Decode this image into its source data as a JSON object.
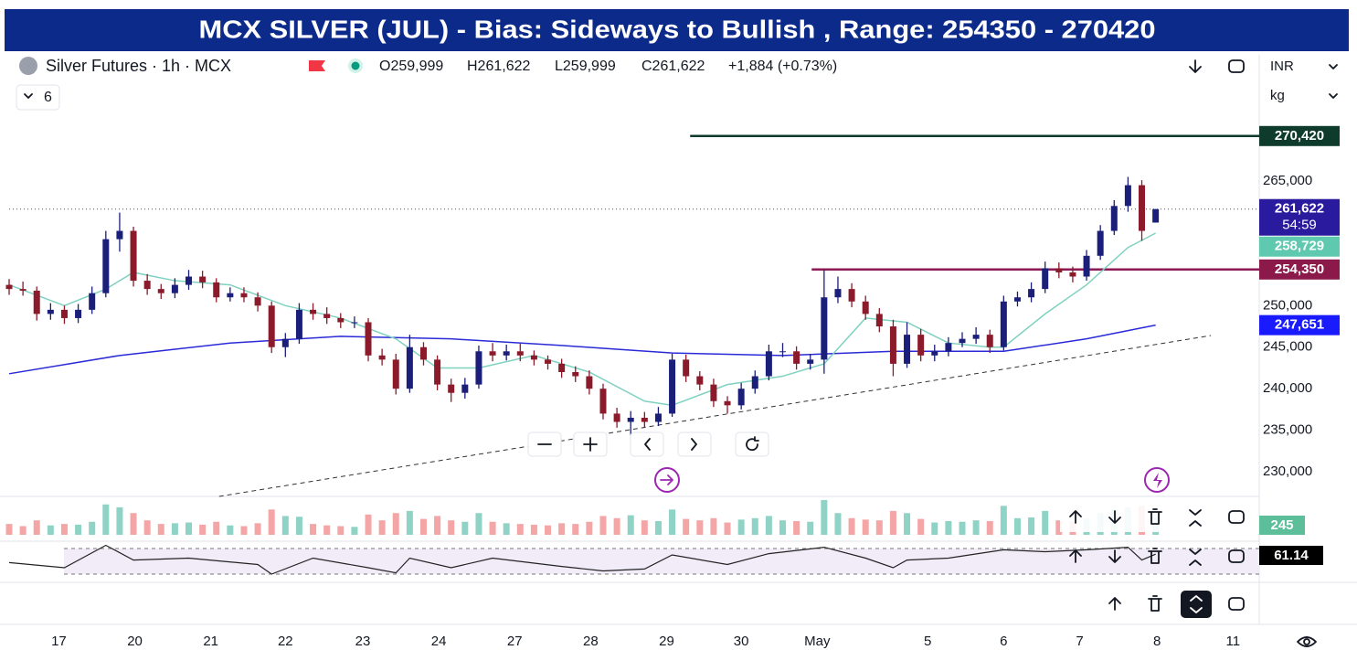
{
  "chart_data": {
    "type": "candlestick",
    "title": "MCX SILVER (JUL) - Bias: Sideways to Bullish , Range: 254350 - 270420",
    "legend": {
      "symbol": "Silver Futures · 1h · MCX",
      "open": "O259,999",
      "high": "H261,622",
      "low": "L259,999",
      "close": "C261,622",
      "change": "+1,884 (+0.73%)",
      "indicators": "6"
    },
    "currency": "INR",
    "unit": "kg",
    "up_color": "#1b1f7a",
    "down_color": "#8b1a2b",
    "volume_up_color": "#8fd3c6",
    "volume_down_color": "#f4a6a6",
    "xlim": [
      0,
      90.5
    ],
    "ylim": [
      227360,
      274690
    ],
    "yticks": [
      {
        "value": 230000,
        "label": "230,000"
      },
      {
        "value": 235000,
        "label": "235,000"
      },
      {
        "value": 240000,
        "label": "240,000"
      },
      {
        "value": 245000,
        "label": "245,000"
      },
      {
        "value": 250000,
        "label": "250,000"
      },
      {
        "value": 265000,
        "label": "265,000"
      }
    ],
    "xticks": [
      {
        "value": 3.6,
        "label": "17"
      },
      {
        "value": 9.1,
        "label": "20"
      },
      {
        "value": 14.6,
        "label": "21"
      },
      {
        "value": 20.0,
        "label": "22"
      },
      {
        "value": 25.6,
        "label": "23"
      },
      {
        "value": 31.1,
        "label": "24"
      },
      {
        "value": 36.6,
        "label": "27"
      },
      {
        "value": 42.1,
        "label": "28"
      },
      {
        "value": 47.6,
        "label": "29"
      },
      {
        "value": 53.0,
        "label": "30"
      },
      {
        "value": 58.5,
        "label": "May"
      },
      {
        "value": 66.5,
        "label": "5"
      },
      {
        "value": 72.0,
        "label": "6"
      },
      {
        "value": 77.5,
        "label": "7"
      },
      {
        "value": 83.1,
        "label": "8"
      },
      {
        "value": 88.6,
        "label": "11"
      }
    ],
    "grid": false,
    "ohlc": [
      [
        252500,
        253200,
        251300,
        252000
      ],
      [
        252000,
        252900,
        251200,
        251800
      ],
      [
        251800,
        252300,
        248200,
        249000
      ],
      [
        249000,
        250300,
        248300,
        249500
      ],
      [
        249500,
        250000,
        247800,
        248500
      ],
      [
        248500,
        250200,
        247900,
        249500
      ],
      [
        249500,
        252300,
        249000,
        251500
      ],
      [
        251500,
        259000,
        251000,
        258000
      ],
      [
        258000,
        261200,
        256500,
        259000
      ],
      [
        259000,
        259500,
        252300,
        253000
      ],
      [
        253000,
        253800,
        251300,
        252000
      ],
      [
        252000,
        252600,
        250800,
        251500
      ],
      [
        251500,
        253300,
        250900,
        252500
      ],
      [
        252500,
        254300,
        251900,
        253500
      ],
      [
        253500,
        254200,
        252100,
        252800
      ],
      [
        252800,
        253300,
        250400,
        251000
      ],
      [
        251000,
        252200,
        250500,
        251500
      ],
      [
        251500,
        252200,
        250400,
        251000
      ],
      [
        251000,
        251600,
        249300,
        250000
      ],
      [
        250000,
        250500,
        244300,
        245000
      ],
      [
        245000,
        246700,
        243800,
        246000
      ],
      [
        246000,
        250300,
        245400,
        249500
      ],
      [
        249500,
        250300,
        248300,
        249000
      ],
      [
        249000,
        249800,
        247800,
        248500
      ],
      [
        248500,
        249100,
        247300,
        248000
      ],
      [
        248000,
        248700,
        247300,
        248000
      ],
      [
        248000,
        248500,
        243300,
        244000
      ],
      [
        244000,
        244800,
        242800,
        243500
      ],
      [
        243500,
        244200,
        239300,
        240000
      ],
      [
        240000,
        246500,
        239500,
        245000
      ],
      [
        245000,
        245600,
        242800,
        243500
      ],
      [
        243500,
        244000,
        239800,
        240500
      ],
      [
        240500,
        241200,
        238400,
        239500
      ],
      [
        239500,
        241300,
        238800,
        240500
      ],
      [
        240500,
        245200,
        240000,
        244500
      ],
      [
        244500,
        245500,
        243300,
        244000
      ],
      [
        244000,
        245300,
        243400,
        244500
      ],
      [
        244500,
        245400,
        243300,
        244000
      ],
      [
        244000,
        244600,
        242800,
        243500
      ],
      [
        243500,
        244000,
        242300,
        243000
      ],
      [
        243000,
        243600,
        241300,
        242000
      ],
      [
        242000,
        242700,
        240800,
        241500
      ],
      [
        241500,
        242200,
        239300,
        240000
      ],
      [
        240000,
        240600,
        236300,
        237000
      ],
      [
        237000,
        237700,
        235300,
        236000
      ],
      [
        236000,
        237300,
        234300,
        236500
      ],
      [
        236500,
        237200,
        235300,
        236000
      ],
      [
        236000,
        237800,
        235500,
        237000
      ],
      [
        237000,
        244200,
        236600,
        243500
      ],
      [
        243500,
        244100,
        240800,
        241500
      ],
      [
        241500,
        242100,
        239800,
        240500
      ],
      [
        240500,
        241200,
        237800,
        238500
      ],
      [
        238500,
        239100,
        237000,
        238000
      ],
      [
        238000,
        240700,
        237500,
        240000
      ],
      [
        240000,
        242200,
        239400,
        241500
      ],
      [
        241500,
        245300,
        241000,
        244500
      ],
      [
        244500,
        245500,
        243800,
        244500
      ],
      [
        244500,
        245100,
        242300,
        243000
      ],
      [
        243000,
        244200,
        242300,
        243500
      ],
      [
        243500,
        254300,
        241800,
        251000
      ],
      [
        251000,
        253500,
        250300,
        252000
      ],
      [
        252000,
        252700,
        249800,
        250500
      ],
      [
        250500,
        251200,
        248300,
        249000
      ],
      [
        249000,
        249700,
        246800,
        247500
      ],
      [
        247500,
        248300,
        241500,
        243000
      ],
      [
        243000,
        248000,
        242500,
        246500
      ],
      [
        246500,
        247200,
        243300,
        244000
      ],
      [
        244000,
        245300,
        243300,
        244500
      ],
      [
        244500,
        246200,
        243900,
        245500
      ],
      [
        245500,
        246800,
        245000,
        246000
      ],
      [
        246000,
        247400,
        245400,
        246500
      ],
      [
        246500,
        247100,
        244300,
        245000
      ],
      [
        245000,
        251200,
        244600,
        250500
      ],
      [
        250500,
        251700,
        249900,
        251000
      ],
      [
        251000,
        252800,
        250400,
        252000
      ],
      [
        252000,
        255300,
        251500,
        254500
      ],
      [
        254500,
        255200,
        253300,
        254000
      ],
      [
        254000,
        254700,
        252800,
        253500
      ],
      [
        253500,
        256700,
        253000,
        256000
      ],
      [
        256000,
        259700,
        255500,
        259000
      ],
      [
        259000,
        262700,
        258500,
        262000
      ],
      [
        262000,
        265500,
        261300,
        264500
      ],
      [
        264500,
        265100,
        257800,
        259000
      ],
      [
        259999,
        261622,
        259999,
        261622
      ]
    ],
    "ma_fast": {
      "color": "#7fd1c0",
      "x": [
        0,
        4,
        7,
        9,
        12,
        16,
        20,
        24,
        28,
        31,
        34,
        38,
        42,
        46,
        48,
        52,
        56,
        59,
        62,
        65,
        68,
        71,
        72,
        75,
        78,
        81,
        83
      ],
      "values": [
        252500,
        250000,
        252000,
        254000,
        253000,
        252500,
        250000,
        248500,
        246000,
        242500,
        242500,
        244000,
        242000,
        238500,
        238000,
        240500,
        241500,
        243000,
        248500,
        248000,
        245500,
        245000,
        245000,
        249000,
        252500,
        257000,
        258729
      ]
    },
    "ma_slow": {
      "color": "#2a2ad8",
      "x": [
        0,
        8,
        16,
        24,
        32,
        40,
        48,
        56,
        64,
        72,
        78,
        83
      ],
      "values": [
        241800,
        244000,
        245500,
        246300,
        246000,
        245200,
        244300,
        244000,
        244500,
        244500,
        246000,
        247651
      ]
    },
    "levels": [
      {
        "value": 270420,
        "x0": 49.3,
        "color": "#0e3b2c"
      },
      {
        "value": 254350,
        "x0": 58.1,
        "color": "#8b1a55"
      }
    ],
    "trendline": {
      "x": [
        15.2,
        87
      ],
      "values": [
        227030,
        246400
      ]
    },
    "price_tags": [
      {
        "value": 270420,
        "label": "270,420",
        "color": "#0e3b2c"
      },
      {
        "value": 261622,
        "label": "261,622",
        "sublabel": "54:59",
        "color": "#2a1a9e"
      },
      {
        "value": 258729,
        "label": "258,729",
        "color": "#5fc9b0"
      },
      {
        "value": 254350,
        "label": "254,350",
        "color": "#8b1a4a"
      },
      {
        "value": 247651,
        "label": "247,651",
        "color": "#1a1aff"
      }
    ],
    "volume": [
      150,
      120,
      200,
      130,
      150,
      140,
      180,
      420,
      380,
      300,
      200,
      150,
      160,
      170,
      140,
      180,
      130,
      120,
      160,
      350,
      260,
      250,
      150,
      130,
      120,
      110,
      280,
      200,
      300,
      330,
      220,
      260,
      200,
      180,
      300,
      180,
      160,
      150,
      140,
      130,
      160,
      150,
      180,
      260,
      230,
      270,
      200,
      190,
      350,
      220,
      200,
      230,
      170,
      210,
      230,
      260,
      200,
      190,
      180,
      480,
      300,
      230,
      210,
      200,
      330,
      300,
      220,
      170,
      190,
      180,
      200,
      190,
      400,
      230,
      240,
      330,
      200,
      190,
      230,
      300,
      350,
      380,
      400,
      245
    ],
    "volume_label": "245",
    "rsi": {
      "x": [
        0,
        4,
        7,
        9,
        13,
        18,
        19,
        22,
        26,
        28,
        29,
        32,
        35,
        40,
        43,
        46,
        48,
        52,
        55,
        59,
        62,
        64,
        65,
        68,
        72,
        75,
        78,
        81,
        82,
        83
      ],
      "values": [
        48,
        40,
        75,
        52,
        55,
        45,
        30,
        55,
        40,
        32,
        55,
        40,
        55,
        42,
        35,
        38,
        60,
        45,
        62,
        72,
        55,
        40,
        52,
        55,
        68,
        65,
        68,
        72,
        52,
        61.14
      ]
    },
    "rsi_bands": [
      30,
      70
    ],
    "rsi_label": "61.14"
  }
}
